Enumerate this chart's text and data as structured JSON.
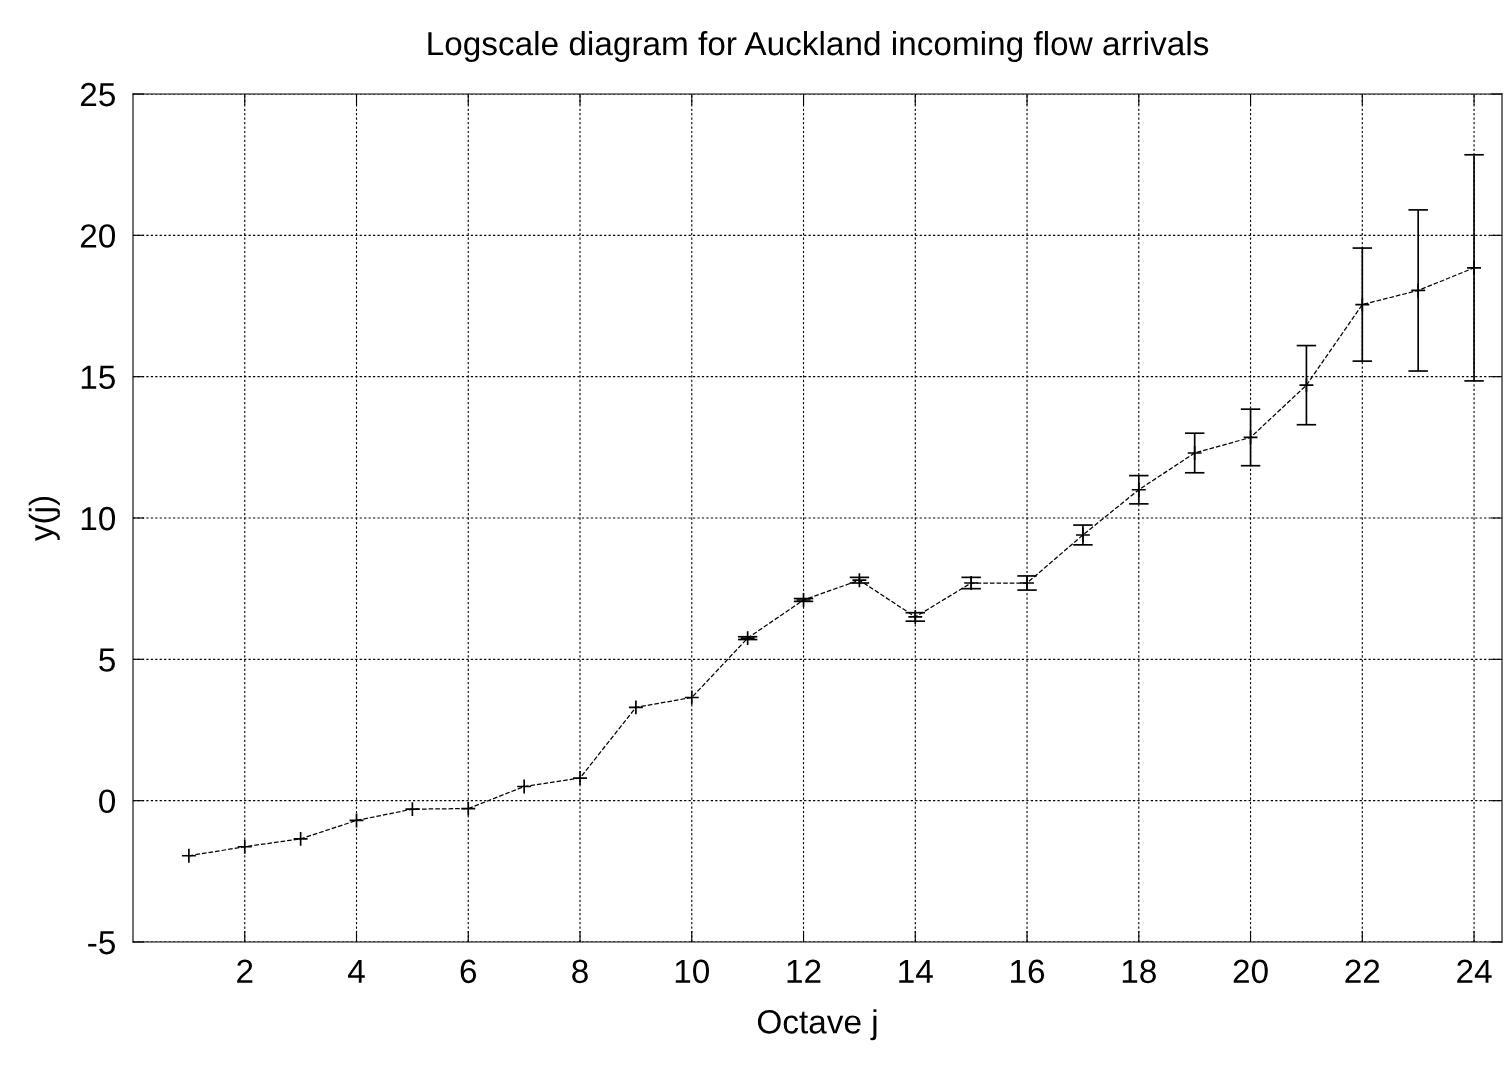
{
  "chart_data": {
    "type": "line",
    "title": "Logscale diagram for Auckland incoming flow arrivals",
    "xlabel": "Octave j",
    "ylabel": "y(j)",
    "x": [
      1,
      2,
      3,
      4,
      5,
      6,
      7,
      8,
      9,
      10,
      11,
      12,
      13,
      14,
      15,
      16,
      17,
      18,
      19,
      20,
      21,
      22,
      23,
      24
    ],
    "series": [
      {
        "color": "#000000",
        "values": [
          -1.95,
          -1.63,
          -1.35,
          -0.7,
          -0.3,
          -0.28,
          0.5,
          0.8,
          3.3,
          3.65,
          5.75,
          7.1,
          7.8,
          6.5,
          7.7,
          7.7,
          9.4,
          11.0,
          12.3,
          12.85,
          14.7,
          17.55,
          18.05,
          18.85
        ],
        "errors": [
          null,
          null,
          null,
          null,
          null,
          null,
          null,
          null,
          null,
          null,
          0.05,
          0.05,
          0.1,
          0.15,
          0.2,
          0.25,
          0.35,
          0.5,
          0.7,
          1.0,
          1.4,
          2.0,
          2.85,
          4.0
        ]
      }
    ],
    "xlim": [
      0,
      24.5
    ],
    "xticks": [
      2,
      4,
      6,
      8,
      10,
      12,
      14,
      16,
      18,
      20,
      22,
      24
    ],
    "ylim": [
      -5,
      25
    ],
    "yticks": [
      -5,
      0,
      5,
      10,
      15,
      20,
      25
    ],
    "grid": true,
    "marker": "cross",
    "line_style": "dashed"
  }
}
